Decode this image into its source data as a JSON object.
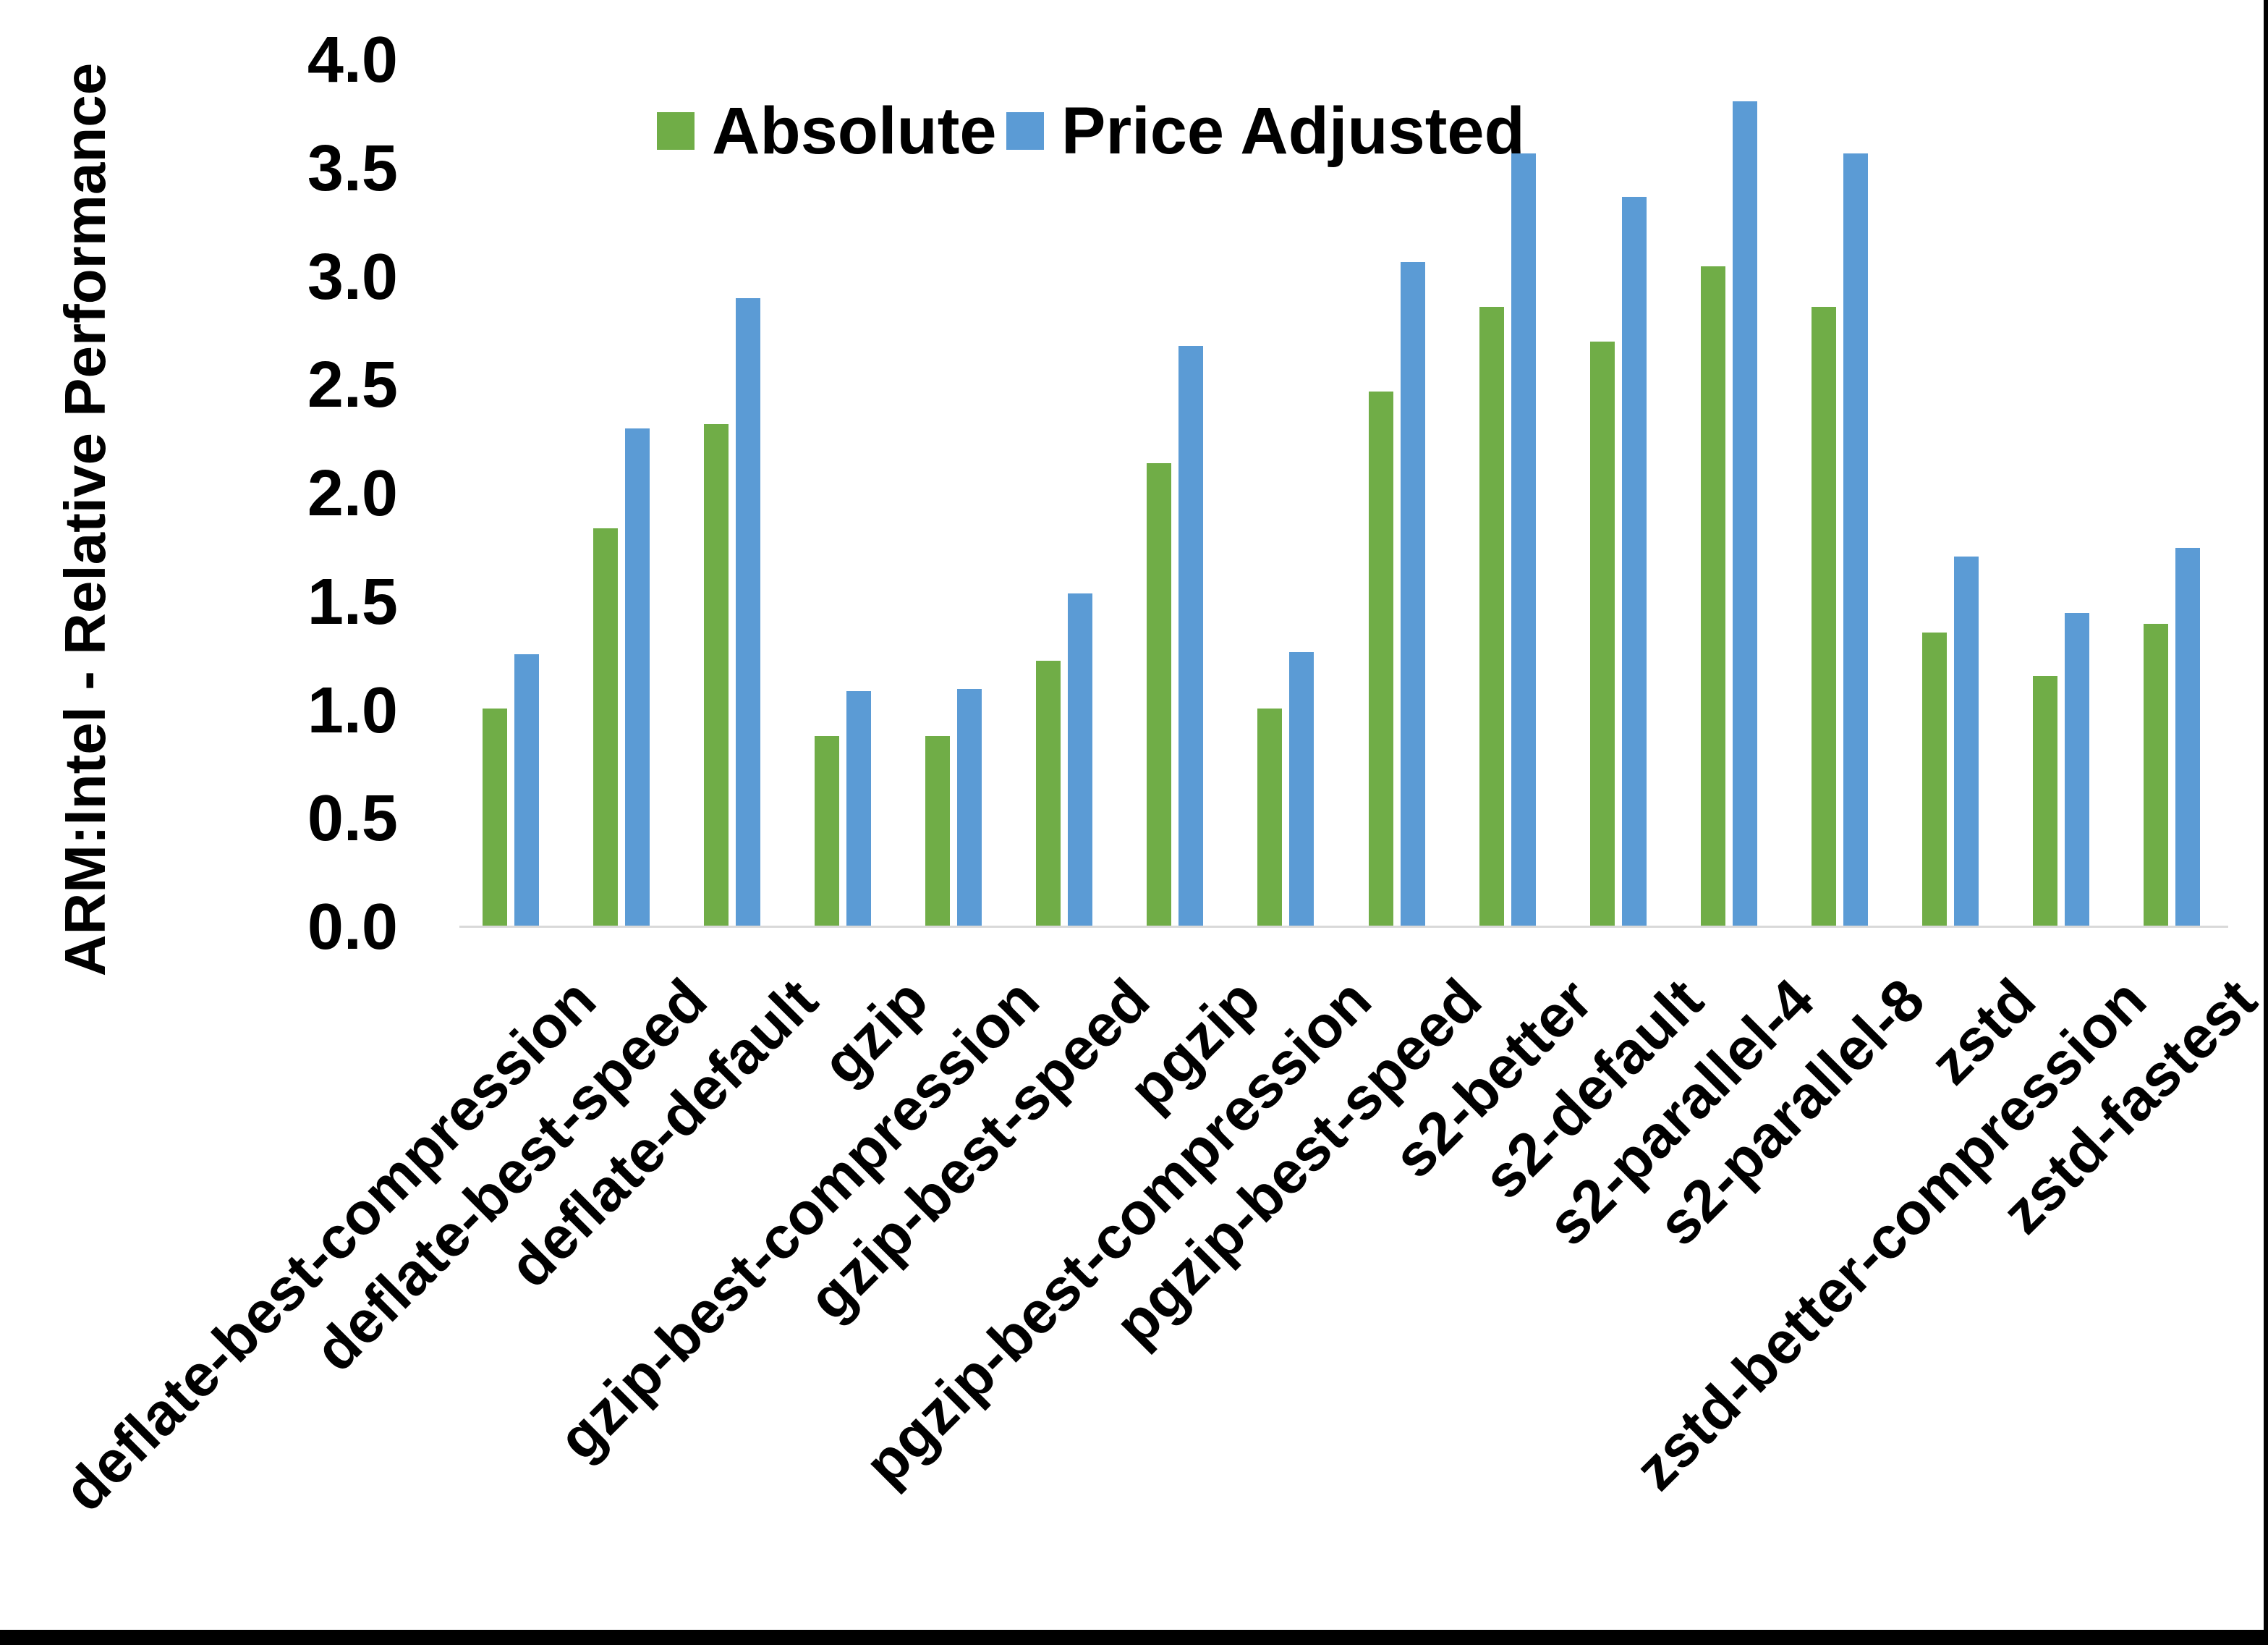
{
  "chart_data": {
    "type": "bar",
    "title": "",
    "xlabel": "",
    "ylabel": "ARM:Intel - Relative Performance",
    "ylim": [
      0.0,
      4.0
    ],
    "ytick_step": 0.5,
    "ytick_labels": [
      "0.0",
      "0.5",
      "1.0",
      "1.5",
      "2.0",
      "2.5",
      "3.0",
      "3.5",
      "4.0"
    ],
    "grid": false,
    "legend_position": "top-center",
    "categories": [
      "deflate-best-compression",
      "deflate-best-speed",
      "deflate-default",
      "gzip",
      "gzip-best-compression",
      "gzip-best-speed",
      "pgzip",
      "pgzip-best-compression",
      "pgzip-best-speed",
      "s2-better",
      "s2-default",
      "s2-parallel-4",
      "s2-parallel-8",
      "zstd",
      "zstd-better-compression",
      "zstd-fastest"
    ],
    "series": [
      {
        "name": "Absolute",
        "color": "#70AD47",
        "values": [
          1.01,
          1.84,
          2.32,
          0.88,
          0.88,
          1.23,
          2.14,
          1.01,
          2.47,
          2.86,
          2.7,
          3.05,
          2.86,
          1.36,
          1.16,
          1.4
        ]
      },
      {
        "name": "Price Adjusted",
        "color": "#5B9BD5",
        "values": [
          1.26,
          2.3,
          2.9,
          1.09,
          1.1,
          1.54,
          2.68,
          1.27,
          3.07,
          3.57,
          3.37,
          3.81,
          3.57,
          1.71,
          1.45,
          1.75
        ]
      }
    ],
    "axis_line_color": "#D9D9D9",
    "text_color": "#000000"
  }
}
